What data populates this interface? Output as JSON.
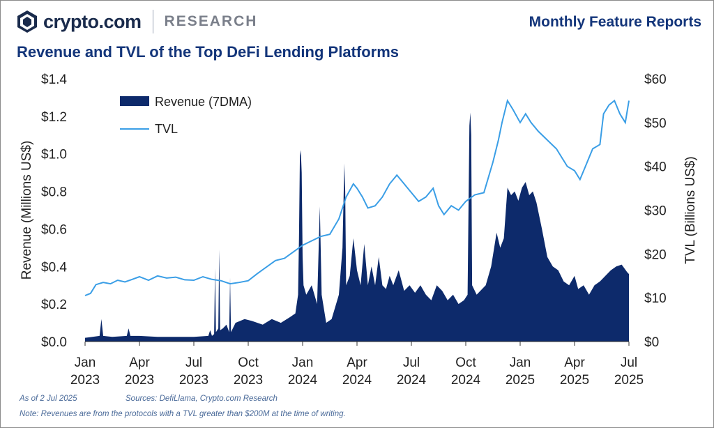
{
  "header": {
    "brand_name": "crypto.com",
    "brand_section": "RESEARCH",
    "report_label": "Monthly Feature Reports",
    "title": "Revenue and TVL of the Top DeFi Lending Platforms"
  },
  "footer": {
    "as_of": "As of 2 Jul 2025",
    "sources": "Sources: DefiLlama, Crypto.com Research",
    "note": "Note: Revenues are from the protocols with a TVL greater than $200M at the time of writing."
  },
  "colors": {
    "revenue": "#0d2a6b",
    "tvl": "#3a9ee6",
    "title": "#13357a",
    "brand": "#1a2b4c"
  },
  "chart_data": {
    "type": "area+line",
    "x_unit": "months since Jan 2023",
    "xlim": [
      0,
      30
    ],
    "x_ticks": [
      {
        "x": 0,
        "l1": "Jan",
        "l2": "2023"
      },
      {
        "x": 3,
        "l1": "Apr",
        "l2": "2023"
      },
      {
        "x": 6,
        "l1": "Jul",
        "l2": "2023"
      },
      {
        "x": 9,
        "l1": "Oct",
        "l2": "2023"
      },
      {
        "x": 12,
        "l1": "Jan",
        "l2": "2024"
      },
      {
        "x": 15,
        "l1": "Apr",
        "l2": "2024"
      },
      {
        "x": 18,
        "l1": "Jul",
        "l2": "2024"
      },
      {
        "x": 21,
        "l1": "Oct",
        "l2": "2024"
      },
      {
        "x": 24,
        "l1": "Jan",
        "l2": "2025"
      },
      {
        "x": 27,
        "l1": "Apr",
        "l2": "2025"
      },
      {
        "x": 30,
        "l1": "Jul",
        "l2": "2025"
      }
    ],
    "y_left": {
      "label": "Revenue (Millions US$)",
      "ylim": [
        0,
        1.4
      ],
      "ticks": [
        {
          "v": 0,
          "label": "$0.0"
        },
        {
          "v": 0.2,
          "label": "$0.2"
        },
        {
          "v": 0.4,
          "label": "$0.4"
        },
        {
          "v": 0.6,
          "label": "$0.6"
        },
        {
          "v": 0.8,
          "label": "$0.8"
        },
        {
          "v": 1.0,
          "label": "$1.0"
        },
        {
          "v": 1.2,
          "label": "$1.2"
        },
        {
          "v": 1.4,
          "label": "$1.4"
        }
      ]
    },
    "y_right": {
      "label": "TVL (Billions US$)",
      "ylim": [
        0,
        60
      ],
      "ticks": [
        {
          "v": 0,
          "label": "$0"
        },
        {
          "v": 10,
          "label": "$10"
        },
        {
          "v": 20,
          "label": "$20"
        },
        {
          "v": 30,
          "label": "$30"
        },
        {
          "v": 40,
          "label": "$40"
        },
        {
          "v": 50,
          "label": "$50"
        },
        {
          "v": 60,
          "label": "$60"
        }
      ]
    },
    "legend_position": "top-left",
    "series": [
      {
        "name": "Revenue (7DMA)",
        "kind": "area",
        "axis": "left",
        "points": [
          [
            0,
            0.02
          ],
          [
            0.8,
            0.03
          ],
          [
            0.9,
            0.12
          ],
          [
            1.0,
            0.03
          ],
          [
            1.5,
            0.025
          ],
          [
            2.3,
            0.03
          ],
          [
            2.4,
            0.07
          ],
          [
            2.5,
            0.03
          ],
          [
            3,
            0.03
          ],
          [
            4,
            0.025
          ],
          [
            5,
            0.025
          ],
          [
            6,
            0.025
          ],
          [
            6.8,
            0.03
          ],
          [
            6.9,
            0.06
          ],
          [
            7.0,
            0.03
          ],
          [
            7.12,
            0.04
          ],
          [
            7.17,
            0.39
          ],
          [
            7.22,
            0.05
          ],
          [
            7.35,
            0.07
          ],
          [
            7.4,
            0.49
          ],
          [
            7.45,
            0.06
          ],
          [
            7.6,
            0.07
          ],
          [
            7.8,
            0.09
          ],
          [
            7.95,
            0.05
          ],
          [
            8.0,
            0.34
          ],
          [
            8.05,
            0.05
          ],
          [
            8.3,
            0.1
          ],
          [
            8.8,
            0.12
          ],
          [
            9.2,
            0.11
          ],
          [
            9.8,
            0.09
          ],
          [
            10.3,
            0.12
          ],
          [
            10.8,
            0.1
          ],
          [
            11.3,
            0.13
          ],
          [
            11.6,
            0.15
          ],
          [
            11.75,
            0.25
          ],
          [
            11.8,
            0.55
          ],
          [
            11.85,
            0.99
          ],
          [
            11.9,
            1.02
          ],
          [
            11.95,
            0.9
          ],
          [
            12.0,
            0.45
          ],
          [
            12.05,
            0.3
          ],
          [
            12.2,
            0.25
          ],
          [
            12.5,
            0.3
          ],
          [
            12.8,
            0.2
          ],
          [
            12.95,
            0.72
          ],
          [
            13.05,
            0.25
          ],
          [
            13.3,
            0.1
          ],
          [
            13.6,
            0.12
          ],
          [
            14.0,
            0.25
          ],
          [
            14.2,
            0.5
          ],
          [
            14.3,
            0.95
          ],
          [
            14.35,
            0.8
          ],
          [
            14.4,
            0.3
          ],
          [
            14.6,
            0.35
          ],
          [
            14.8,
            0.55
          ],
          [
            15.0,
            0.38
          ],
          [
            15.2,
            0.3
          ],
          [
            15.4,
            0.52
          ],
          [
            15.6,
            0.3
          ],
          [
            15.8,
            0.4
          ],
          [
            16.0,
            0.3
          ],
          [
            16.2,
            0.45
          ],
          [
            16.4,
            0.3
          ],
          [
            16.6,
            0.28
          ],
          [
            16.8,
            0.35
          ],
          [
            17.0,
            0.3
          ],
          [
            17.3,
            0.38
          ],
          [
            17.6,
            0.27
          ],
          [
            17.9,
            0.3
          ],
          [
            18.2,
            0.26
          ],
          [
            18.5,
            0.3
          ],
          [
            18.8,
            0.25
          ],
          [
            19.1,
            0.22
          ],
          [
            19.4,
            0.3
          ],
          [
            19.7,
            0.27
          ],
          [
            20.0,
            0.22
          ],
          [
            20.3,
            0.25
          ],
          [
            20.6,
            0.2
          ],
          [
            20.9,
            0.22
          ],
          [
            21.1,
            0.25
          ],
          [
            21.2,
            1.15
          ],
          [
            21.25,
            1.22
          ],
          [
            21.3,
            1.1
          ],
          [
            21.35,
            0.3
          ],
          [
            21.6,
            0.25
          ],
          [
            21.9,
            0.28
          ],
          [
            22.1,
            0.3
          ],
          [
            22.4,
            0.4
          ],
          [
            22.7,
            0.58
          ],
          [
            22.9,
            0.5
          ],
          [
            23.1,
            0.55
          ],
          [
            23.3,
            0.82
          ],
          [
            23.5,
            0.78
          ],
          [
            23.7,
            0.8
          ],
          [
            23.9,
            0.75
          ],
          [
            24.1,
            0.82
          ],
          [
            24.3,
            0.85
          ],
          [
            24.5,
            0.78
          ],
          [
            24.7,
            0.8
          ],
          [
            24.9,
            0.74
          ],
          [
            25.2,
            0.6
          ],
          [
            25.5,
            0.45
          ],
          [
            25.8,
            0.4
          ],
          [
            26.1,
            0.38
          ],
          [
            26.4,
            0.32
          ],
          [
            26.7,
            0.3
          ],
          [
            27.0,
            0.35
          ],
          [
            27.2,
            0.28
          ],
          [
            27.5,
            0.3
          ],
          [
            27.8,
            0.25
          ],
          [
            28.1,
            0.3
          ],
          [
            28.4,
            0.32
          ],
          [
            28.7,
            0.35
          ],
          [
            29.0,
            0.38
          ],
          [
            29.3,
            0.4
          ],
          [
            29.6,
            0.41
          ],
          [
            29.9,
            0.37
          ],
          [
            30.0,
            0.36
          ]
        ]
      },
      {
        "name": "TVL",
        "kind": "line",
        "axis": "right",
        "points": [
          [
            0,
            10.5
          ],
          [
            0.3,
            11
          ],
          [
            0.6,
            13
          ],
          [
            1.0,
            13.5
          ],
          [
            1.4,
            13.2
          ],
          [
            1.8,
            14
          ],
          [
            2.2,
            13.6
          ],
          [
            2.6,
            14.2
          ],
          [
            3.0,
            14.8
          ],
          [
            3.5,
            14
          ],
          [
            4.0,
            15
          ],
          [
            4.5,
            14.5
          ],
          [
            5.0,
            14.7
          ],
          [
            5.5,
            14.1
          ],
          [
            6.0,
            14
          ],
          [
            6.5,
            14.8
          ],
          [
            7.0,
            14.2
          ],
          [
            7.5,
            13.9
          ],
          [
            8.0,
            13.2
          ],
          [
            8.5,
            13.5
          ],
          [
            9.0,
            13.9
          ],
          [
            9.5,
            15.5
          ],
          [
            10.0,
            17
          ],
          [
            10.5,
            18.5
          ],
          [
            11.0,
            19
          ],
          [
            11.5,
            20.5
          ],
          [
            12.0,
            22
          ],
          [
            12.5,
            23
          ],
          [
            13.0,
            24
          ],
          [
            13.5,
            24.5
          ],
          [
            14.0,
            28
          ],
          [
            14.4,
            33
          ],
          [
            14.8,
            36
          ],
          [
            15.0,
            35
          ],
          [
            15.3,
            33
          ],
          [
            15.6,
            30.5
          ],
          [
            16.0,
            31
          ],
          [
            16.4,
            33
          ],
          [
            16.8,
            36
          ],
          [
            17.2,
            38
          ],
          [
            17.6,
            36
          ],
          [
            18.0,
            34
          ],
          [
            18.4,
            32
          ],
          [
            18.8,
            33
          ],
          [
            19.2,
            35
          ],
          [
            19.5,
            31
          ],
          [
            19.8,
            29
          ],
          [
            20.2,
            31
          ],
          [
            20.6,
            30
          ],
          [
            21.0,
            32
          ],
          [
            21.5,
            33.5
          ],
          [
            22.0,
            34
          ],
          [
            22.5,
            41
          ],
          [
            22.8,
            46
          ],
          [
            23.0,
            50
          ],
          [
            23.3,
            55
          ],
          [
            23.6,
            53
          ],
          [
            24.0,
            50
          ],
          [
            24.3,
            52
          ],
          [
            24.6,
            50
          ],
          [
            25.0,
            48
          ],
          [
            25.5,
            46
          ],
          [
            26.0,
            44
          ],
          [
            26.3,
            42
          ],
          [
            26.6,
            40
          ],
          [
            27.0,
            39
          ],
          [
            27.3,
            37
          ],
          [
            27.6,
            40
          ],
          [
            28.0,
            44
          ],
          [
            28.4,
            45
          ],
          [
            28.6,
            52
          ],
          [
            28.9,
            54
          ],
          [
            29.2,
            55
          ],
          [
            29.5,
            52
          ],
          [
            29.8,
            50
          ],
          [
            30.0,
            55
          ]
        ]
      }
    ]
  }
}
